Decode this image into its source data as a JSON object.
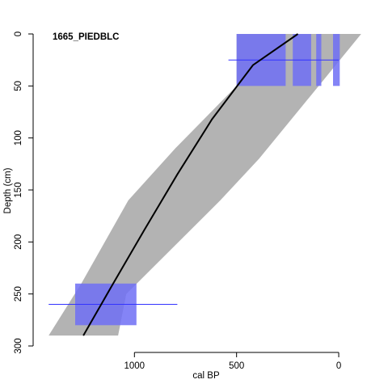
{
  "chart_data": {
    "type": "line",
    "title": "",
    "site_label": "1665_PIEDBLC",
    "xlabel": "cal BP",
    "ylabel": "Depth (cm)",
    "x_reversed": true,
    "y_reversed": true,
    "xlim": [
      1480,
      -170
    ],
    "ylim": [
      0,
      300
    ],
    "x_ticks": [
      1000,
      500,
      0
    ],
    "y_ticks": [
      0,
      50,
      100,
      150,
      200,
      250,
      300
    ],
    "colors": {
      "envelope": "#b3b3b3",
      "date_block": "#6f6ff5",
      "date_line": "#3333ff",
      "median_line": "#000000"
    },
    "median_line": [
      {
        "x": 1250,
        "y": 290
      },
      {
        "x": 1110,
        "y": 242
      },
      {
        "x": 950,
        "y": 188
      },
      {
        "x": 790,
        "y": 135
      },
      {
        "x": 620,
        "y": 82
      },
      {
        "x": 420,
        "y": 30
      },
      {
        "x": 200,
        "y": 0
      }
    ],
    "envelope_old_edge": [
      {
        "x": 1420,
        "y": 290
      },
      {
        "x": 1260,
        "y": 240
      },
      {
        "x": 1030,
        "y": 160
      },
      {
        "x": 800,
        "y": 110
      },
      {
        "x": 500,
        "y": 50
      },
      {
        "x": 500,
        "y": 0
      }
    ],
    "envelope_young_edge": [
      {
        "x": -110,
        "y": 0
      },
      {
        "x": 140,
        "y": 60
      },
      {
        "x": 390,
        "y": 120
      },
      {
        "x": 580,
        "y": 160
      },
      {
        "x": 1040,
        "y": 250
      },
      {
        "x": 1080,
        "y": 290
      }
    ],
    "date_blocks": [
      {
        "x_old": 1290,
        "x_young": 990,
        "y_top": 240,
        "y_bottom": 280
      },
      {
        "x_old": 500,
        "x_young": 260,
        "y_top": 0,
        "y_bottom": 50
      },
      {
        "x_old": 225,
        "x_young": 135,
        "y_top": 0,
        "y_bottom": 50
      },
      {
        "x_old": 110,
        "x_young": 85,
        "y_top": 0,
        "y_bottom": 50
      },
      {
        "x_old": 28,
        "x_young": -5,
        "y_top": 0,
        "y_bottom": 50
      }
    ],
    "date_lines": [
      {
        "x_old": 1420,
        "x_young": 790,
        "y": 260
      },
      {
        "x_old": 540,
        "x_young": 0,
        "y": 25
      }
    ]
  }
}
